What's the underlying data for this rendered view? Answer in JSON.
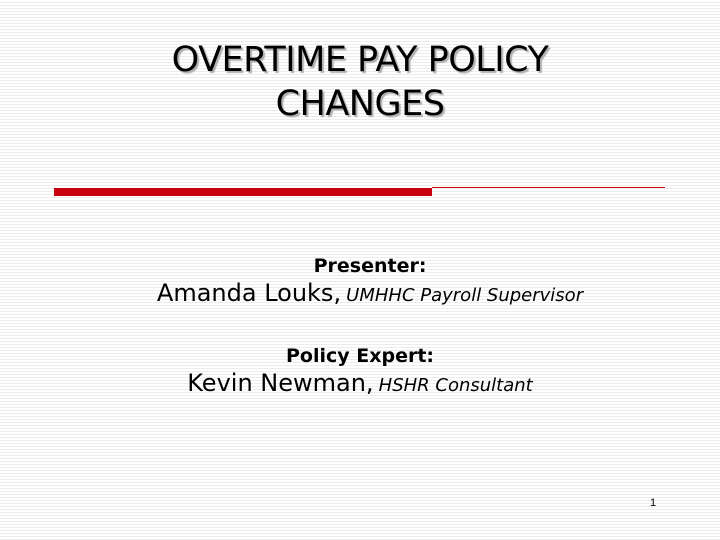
{
  "slide": {
    "title_line1": "OVERTIME PAY POLICY",
    "title_line2": "CHANGES",
    "accent_color": "#c8000f",
    "presenter_label": "Presenter:",
    "presenter_name": "Amanda Louks,",
    "presenter_role": "UMHHC Payroll Supervisor",
    "expert_label": "Policy Expert:",
    "expert_name": "Kevin Newman,",
    "expert_role": "HSHR Consultant",
    "page_number": "1"
  }
}
